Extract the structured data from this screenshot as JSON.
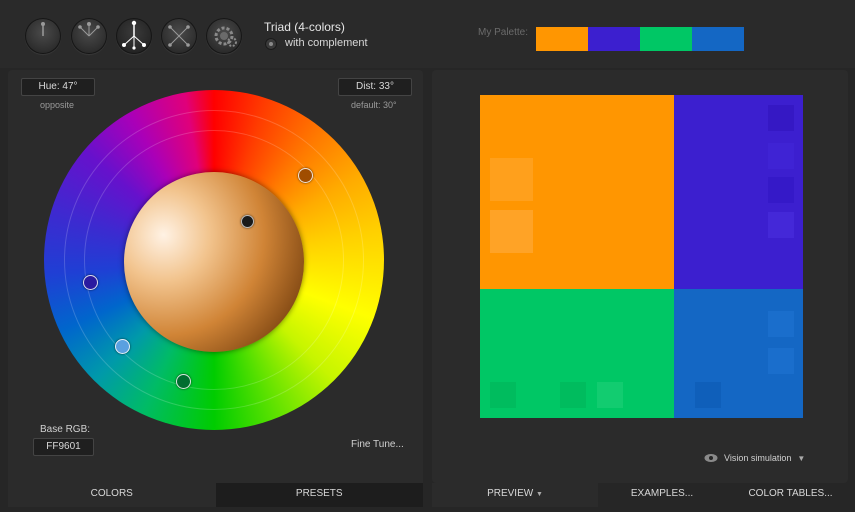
{
  "scheme": {
    "title": "Triad (4-colors)",
    "complement_label": "with complement",
    "modes": [
      {
        "icon": "mono-scheme-icon"
      },
      {
        "icon": "adjacent-scheme-icon"
      },
      {
        "icon": "triad-scheme-icon",
        "active": true
      },
      {
        "icon": "tetrad-scheme-icon"
      },
      {
        "icon": "free-style-gear-icon"
      }
    ]
  },
  "palette": {
    "label": "My Palette:",
    "colors": [
      "#FF9601",
      "#3C1FCF",
      "#00C765",
      "#1467C4"
    ]
  },
  "wheel": {
    "hue_label": "Hue: 47°",
    "hue_note": "opposite",
    "dist_label": "Dist: 33°",
    "dist_note": "default: 30°",
    "base_rgb_label": "Base RGB:",
    "base_rgb_value": "FF9601",
    "fine_tune_label": "Fine Tune..."
  },
  "left_tabs": {
    "colors": "COLORS",
    "presets": "PRESETS"
  },
  "preview": {
    "vision_label": "Vision simulation",
    "colors": {
      "primary": "#FF9601",
      "secondary": "#3C1FCF",
      "tertiary": "#00C765",
      "complement": "#1467C4"
    }
  },
  "right_tabs": {
    "preview": "PREVIEW",
    "examples": "EXAMPLES...",
    "tables": "COLOR TABLES..."
  }
}
